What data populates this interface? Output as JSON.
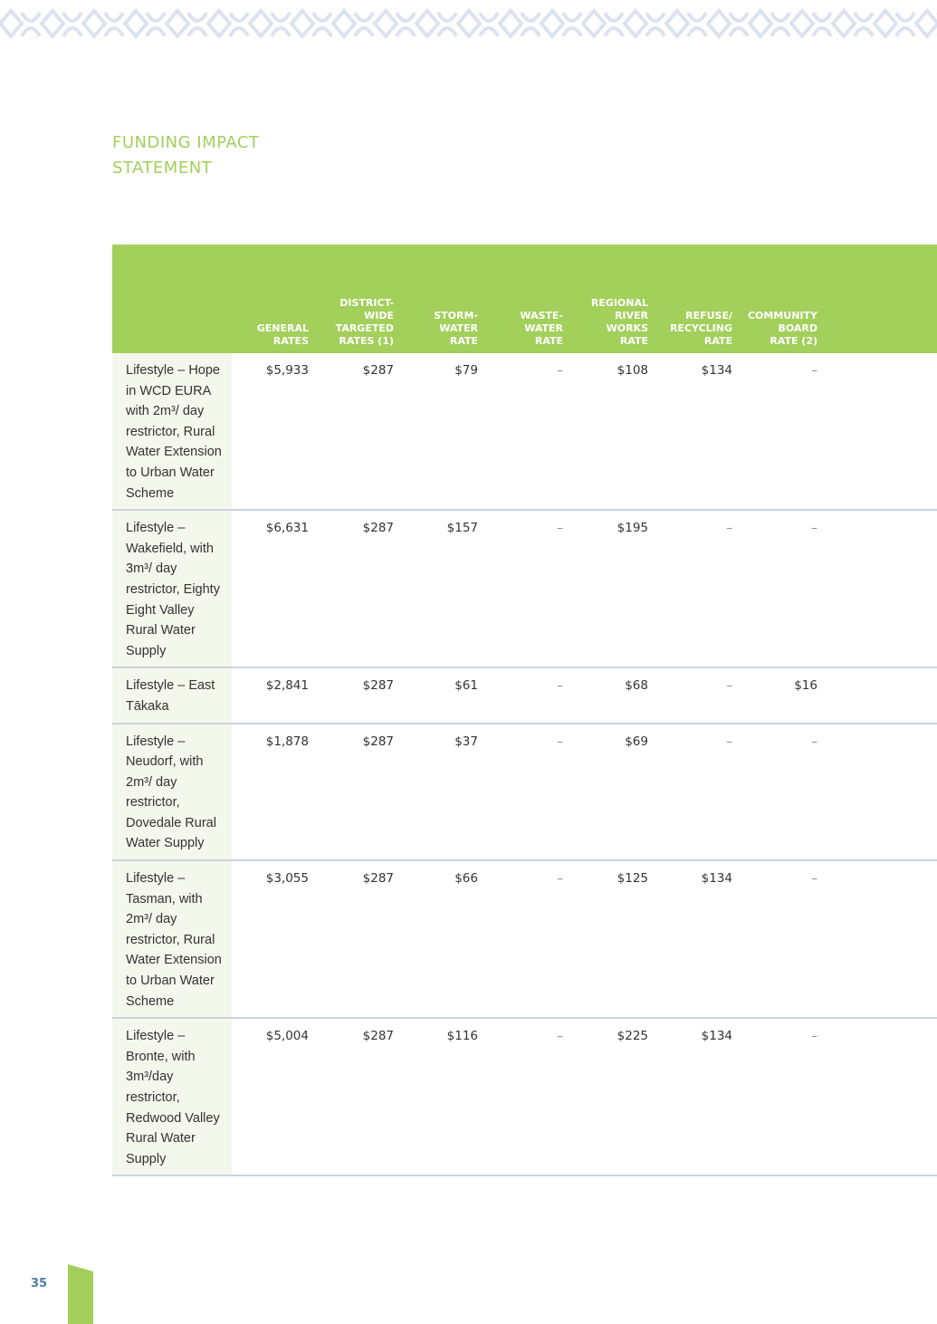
{
  "colors": {
    "accent_green": "#a3cf5b",
    "name_cell_bg": "#f3f7ec",
    "row_divider": "#c9d4df",
    "page_number": "#4f7fa6",
    "pattern": "#dbe3ee"
  },
  "decoration": {
    "top_band_icon": "maori-koru-pattern-icon"
  },
  "title": {
    "line1": "FUNDING IMPACT",
    "line2": "STATEMENT"
  },
  "table": {
    "headers": [
      "",
      "GENERAL\nRATES",
      "DISTRICT-\nWIDE\nTARGETED\nRATES (1)",
      "STORM-\nWATER\nRATE",
      "WASTE-\nWATER\nRATE",
      "REGIONAL\nRIVER\nWORKS\nRATE",
      "REFUSE/\nRECYCLING\nRATE",
      "COMMUNITY\nBOARD\nRATE (2)"
    ],
    "rows": [
      {
        "name": "Lifestyle – Hope in WCD EURA with 2m³/ day restrictor, Rural Water Extension to Urban Water Scheme",
        "cells": [
          "$5,933",
          "$287",
          "$79",
          "–",
          "$108",
          "$134",
          "–"
        ]
      },
      {
        "name": "Lifestyle – Wakefield, with 3m³/ day restrictor, Eighty Eight Valley Rural Water Supply",
        "cells": [
          "$6,631",
          "$287",
          "$157",
          "–",
          "$195",
          "–",
          "–"
        ]
      },
      {
        "name": "Lifestyle – East Tākaka",
        "cells": [
          "$2,841",
          "$287",
          "$61",
          "–",
          "$68",
          "–",
          "$16"
        ]
      },
      {
        "name": "Lifestyle – Neudorf, with 2m³/ day restrictor, Dovedale Rural Water Supply",
        "cells": [
          "$1,878",
          "$287",
          "$37",
          "–",
          "$69",
          "–",
          "–"
        ]
      },
      {
        "name": "Lifestyle – Tasman, with 2m³/ day restrictor, Rural Water Extension to Urban Water Scheme",
        "cells": [
          "$3,055",
          "$287",
          "$66",
          "–",
          "$125",
          "$134",
          "–"
        ]
      },
      {
        "name": "Lifestyle – Bronte, with 3m³/day restrictor, Redwood Valley Rural Water Supply",
        "cells": [
          "$5,004",
          "$287",
          "$116",
          "–",
          "$225",
          "$134",
          "–"
        ]
      }
    ]
  },
  "page_number": "35"
}
